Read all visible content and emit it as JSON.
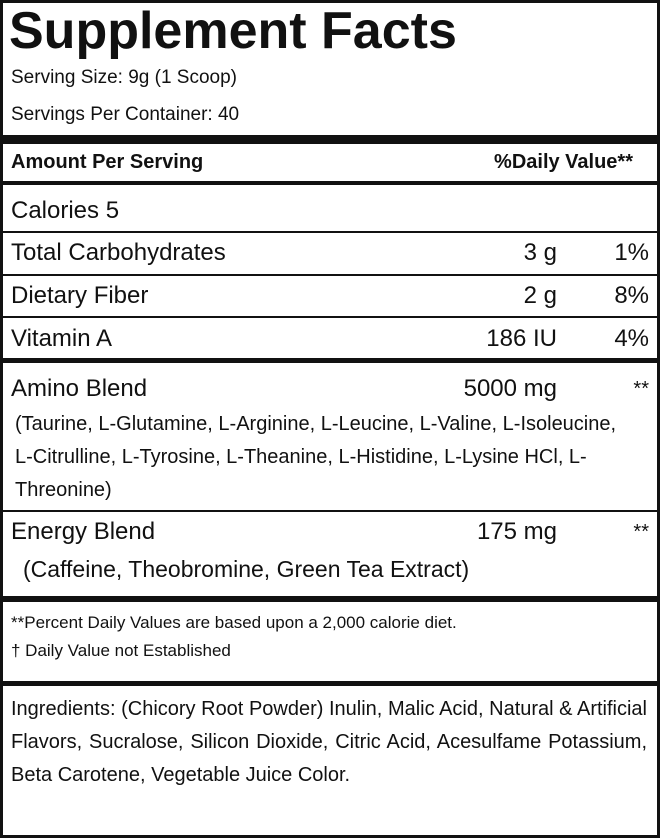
{
  "title": "Supplement Facts",
  "serving_size": "Serving Size: 9g (1 Scoop)",
  "servings_per_container": "Servings Per Container: 40",
  "header": {
    "amount": "Amount Per Serving",
    "daily_value": "%Daily Value**"
  },
  "calories": "Calories 5",
  "rows": [
    {
      "name": "Total Carbohydrates",
      "amount": "3 g",
      "dv": "1%"
    },
    {
      "name": "Dietary Fiber",
      "amount": "2 g",
      "dv": "8%"
    },
    {
      "name": "Vitamin A",
      "amount": "186 IU",
      "dv": "4%"
    }
  ],
  "blends": [
    {
      "name": "Amino Blend",
      "amount": "5000 mg",
      "dv": "**",
      "contents": "(Taurine, L-Glutamine, L-Arginine, L-Leucine, L-Valine, L-Isoleucine, L-Citrulline, L-Tyrosine, L-Theanine, L-Histidine, L-Lysine HCl, L-Threonine)"
    },
    {
      "name": "Energy Blend",
      "amount": "175 mg",
      "dv": "**",
      "contents": "(Caffeine, Theobromine, Green Tea Extract)"
    }
  ],
  "footnotes": [
    "**Percent Daily Values are based upon a 2,000 calorie diet.",
    "† Daily Value not Established"
  ],
  "ingredients": "Ingredients: (Chicory Root Powder) Inulin, Malic Acid, Natural & Artificial Flavors, Sucralose, Silicon Dioxide, Citric Acid, Acesulfame Potassium, Beta Carotene, Vegetable Juice Color."
}
